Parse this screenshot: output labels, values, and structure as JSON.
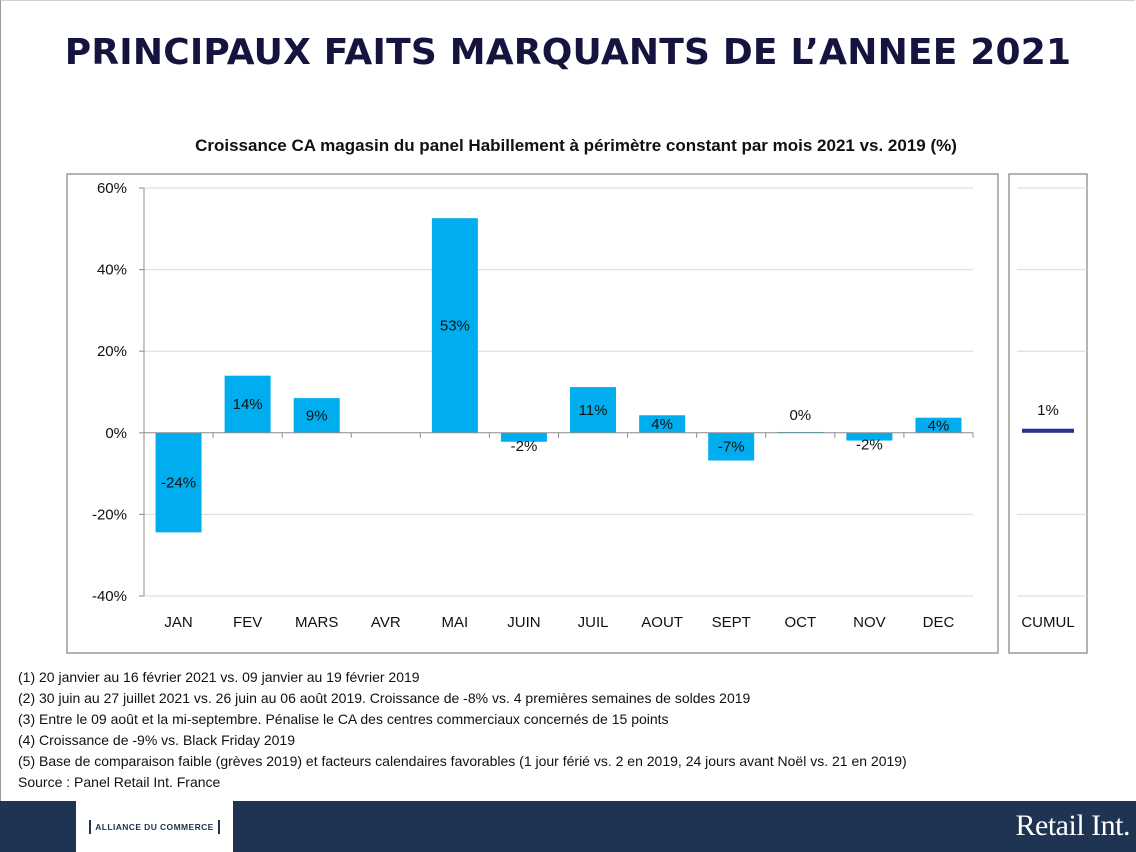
{
  "page": {
    "title": "PRINCIPAUX FAITS MARQUANTS DE L’ANNEE 2021"
  },
  "chart_data": {
    "type": "bar",
    "title": "Croissance CA magasin du panel Habillement à périmètre constant par mois 2021 vs. 2019 (%)",
    "categories": [
      "JAN",
      "FEV",
      "MARS",
      "AVR",
      "MAI",
      "JUIN",
      "JUIL",
      "AOUT",
      "SEPT",
      "OCT",
      "NOV",
      "DEC"
    ],
    "values": [
      -24.4,
      14,
      8.5,
      null,
      52.6,
      -2.2,
      11.2,
      4.3,
      -6.8,
      0.2,
      -1.9,
      3.7
    ],
    "data_labels": [
      "-24%",
      "14%",
      "9%",
      "",
      "53%",
      "-2%",
      "11%",
      "4%",
      "-7%",
      "0%",
      "-2%",
      "4%"
    ],
    "ylim": [
      -40,
      60
    ],
    "yticks": [
      -40,
      -20,
      0,
      20,
      40,
      60
    ],
    "ytick_labels": [
      "-40%",
      "-20%",
      "0%",
      "20%",
      "40%",
      "60%"
    ],
    "grid": true,
    "bar_color": "#00aeef",
    "cumul": {
      "category": "CUMUL",
      "value": 1,
      "label": "1%",
      "color": "#2e3192"
    }
  },
  "footnotes": [
    "(1)  20 janvier au 16 février 2021 vs. 09 janvier au 19 février 2019",
    "(2)  30 juin au 27 juillet 2021 vs. 26 juin au 06 août 2019. Croissance de -8% vs. 4 premières semaines de soldes 2019",
    "(3)  Entre le 09 août et la mi-septembre. Pénalise le CA des centres commerciaux concernés de 15 points",
    "(4)  Croissance de -9% vs. Black Friday 2019",
    "(5)  Base de comparaison faible (grèves 2019) et facteurs calendaires favorables (1 jour férié vs. 2 en 2019, 24 jours avant Noël vs. 21 en 2019)"
  ],
  "source": "Source : Panel Retail Int. France",
  "footer": {
    "partner_logo": "ALLIANCE DU COMMERCE",
    "brand_logo": "Retail Int.",
    "background": "#1f3352"
  }
}
